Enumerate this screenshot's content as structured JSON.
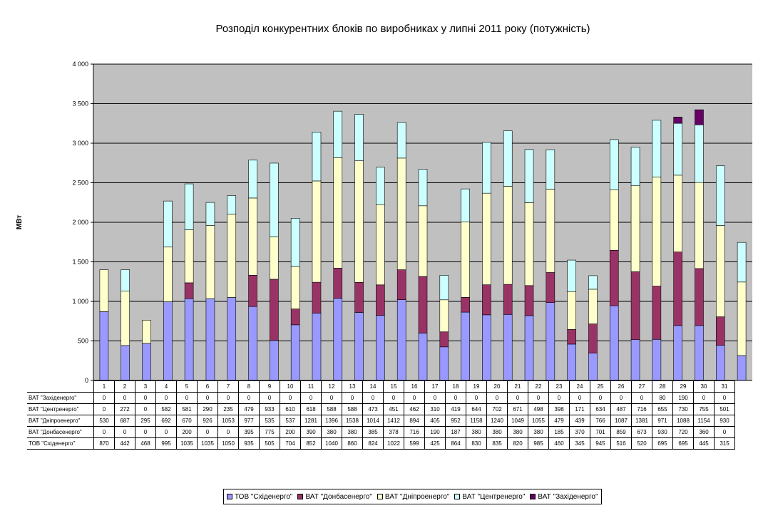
{
  "chart_data": {
    "type": "bar",
    "stacked": true,
    "title": "Розподіл конкурентних блоків по виробниках у липні 2011 року (потужність)",
    "ylabel": "МВт",
    "xlabel": "",
    "ylim": [
      0,
      4000
    ],
    "yticks": [
      0,
      500,
      1000,
      1500,
      2000,
      2500,
      3000,
      3500,
      4000
    ],
    "ytick_labels": [
      "0",
      "500",
      "1 000",
      "1 500",
      "2 000",
      "2 500",
      "3 000",
      "3 500",
      "4 000"
    ],
    "grid": true,
    "legend_position": "bottom",
    "data_table": true,
    "categories": [
      "1",
      "2",
      "3",
      "4",
      "5",
      "6",
      "7",
      "8",
      "9",
      "10",
      "11",
      "12",
      "13",
      "14",
      "15",
      "16",
      "17",
      "18",
      "19",
      "20",
      "21",
      "22",
      "23",
      "24",
      "25",
      "26",
      "27",
      "28",
      "29",
      "30",
      "31"
    ],
    "series": [
      {
        "name": "ТОВ \"Східенерго\"",
        "color": "#9999ff",
        "values": [
          870,
          442,
          468,
          995,
          1035,
          1035,
          1050,
          935,
          505,
          704,
          852,
          1040,
          860,
          824,
          1022,
          599,
          425,
          864,
          830,
          835,
          820,
          985,
          460,
          345,
          945,
          516,
          520,
          695,
          695,
          445,
          315
        ]
      },
      {
        "name": "ВАТ \"Донбасенерго\"",
        "color": "#993366",
        "values": [
          0,
          0,
          0,
          0,
          200,
          0,
          0,
          395,
          775,
          200,
          390,
          380,
          380,
          385,
          378,
          716,
          190,
          187,
          380,
          380,
          380,
          380,
          185,
          370,
          701,
          859,
          673,
          930,
          720,
          360,
          0
        ]
      },
      {
        "name": "ВАТ \"Дніпроенерго\"",
        "color": "#ffffcc",
        "values": [
          530,
          687,
          295,
          692,
          670,
          926,
          1053,
          977,
          535,
          537,
          1281,
          1396,
          1538,
          1014,
          1412,
          894,
          405,
          952,
          1158,
          1240,
          1049,
          1055,
          479,
          439,
          766,
          1087,
          1381,
          971,
          1088,
          1154,
          930
        ]
      },
      {
        "name": "ВАТ \"Центренерго\"",
        "color": "#ccffff",
        "values": [
          0,
          272,
          0,
          582,
          581,
          290,
          235,
          479,
          933,
          610,
          618,
          588,
          588,
          473,
          451,
          462,
          310,
          419,
          644,
          702,
          671,
          498,
          398,
          171,
          634,
          487,
          716,
          655,
          730,
          755,
          501
        ]
      },
      {
        "name": "ВАТ \"Західенерго\"",
        "color": "#660066",
        "values": [
          0,
          0,
          0,
          0,
          0,
          0,
          0,
          0,
          0,
          0,
          0,
          0,
          0,
          0,
          0,
          0,
          0,
          0,
          0,
          0,
          0,
          0,
          0,
          0,
          0,
          0,
          0,
          80,
          190,
          0,
          0
        ]
      }
    ]
  },
  "colors": {
    "plot_background": "#c0c0c0",
    "gridline": "#000000"
  }
}
